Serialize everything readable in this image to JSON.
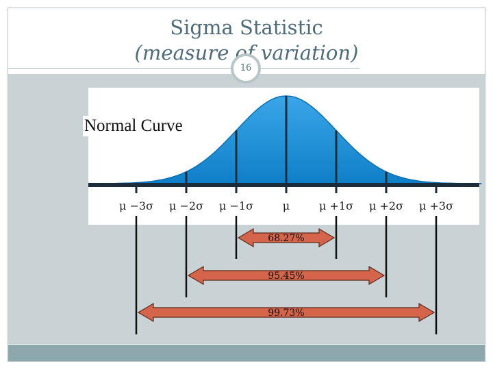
{
  "slide": {
    "title_line1": "Sigma Statistic",
    "title_line2": "(measure of variation)",
    "slide_number": "16"
  },
  "diagram": {
    "curve_label": "Normal Curve",
    "sigma_labels": [
      "μ −3σ",
      "μ −2σ",
      "μ −1σ",
      "μ",
      "μ +1σ",
      "μ +2σ",
      "μ +3σ"
    ],
    "ranges": [
      {
        "label": "68.27%",
        "from_sigma": -1,
        "to_sigma": 1
      },
      {
        "label": "95.45%",
        "from_sigma": -2,
        "to_sigma": 2
      },
      {
        "label": "99.73%",
        "from_sigma": -3,
        "to_sigma": 3
      }
    ]
  },
  "colors": {
    "background_panel": "#c9d2d5",
    "curve_fill": "#1d8fd6",
    "arrow_fill": "#d4644a",
    "footer": "#8da8ac",
    "title_text": "#4e6b78"
  }
}
